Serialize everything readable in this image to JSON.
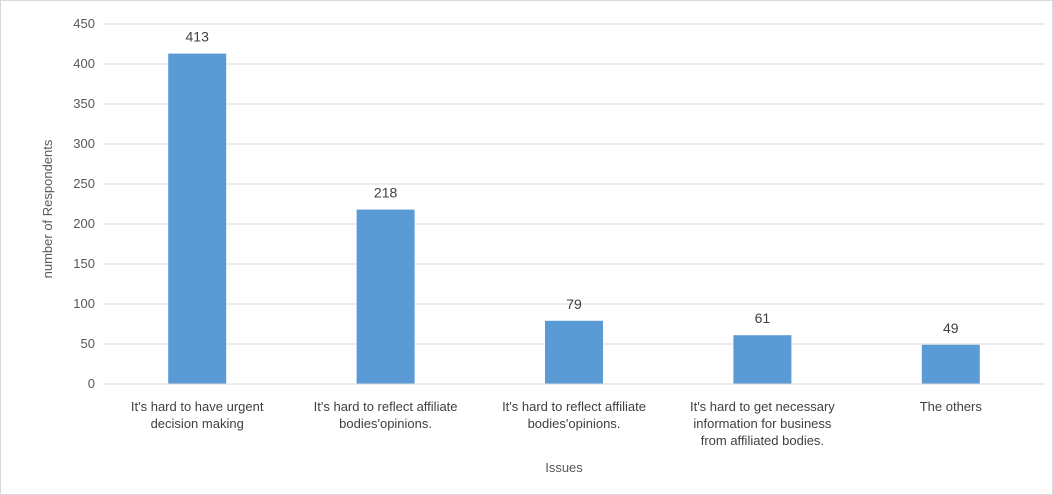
{
  "chart_data": {
    "type": "bar",
    "categories": [
      [
        "It's hard to have urgent",
        "decision making"
      ],
      [
        "It's hard to reflect affiliate",
        "bodies'opinions."
      ],
      [
        "It's hard to reflect affiliate",
        "bodies'opinions."
      ],
      [
        "It's hard to get necessary",
        "information for business",
        "from affiliated bodies."
      ],
      [
        "The others"
      ]
    ],
    "values": [
      413,
      218,
      79,
      61,
      49
    ],
    "xlabel": "Issues",
    "ylabel": "number of Respondents",
    "ylim": [
      0,
      450
    ],
    "yticks": [
      0,
      50,
      100,
      150,
      200,
      250,
      300,
      350,
      400,
      450
    ],
    "grid": true,
    "legend": "none",
    "bar_color": "#5b9bd5",
    "grid_color": "#d9d9d9",
    "data_labels": true
  }
}
